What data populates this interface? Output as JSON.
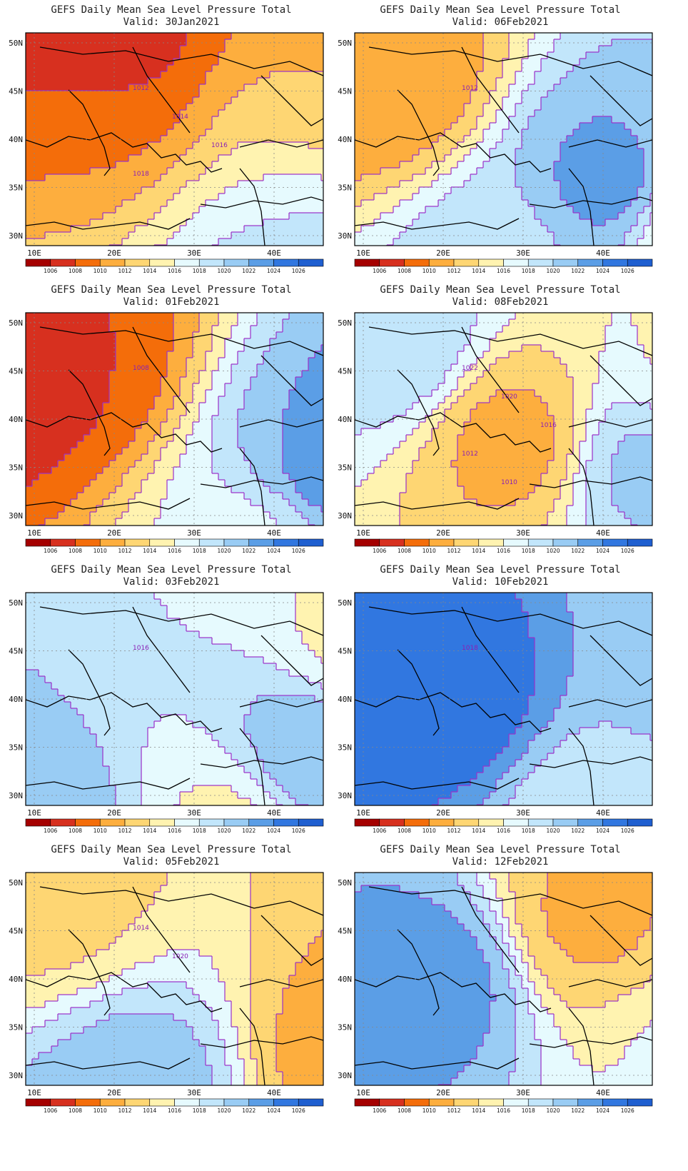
{
  "figure": {
    "title_text": "GEFS Daily Mean Sea Level Pressure Total",
    "valid_prefix": "Valid: "
  },
  "axes": {
    "lat_labels": [
      "50N",
      "45N",
      "40N",
      "35N",
      "30N"
    ],
    "lon_labels": [
      "10E",
      "20E",
      "30E",
      "40E"
    ]
  },
  "colorbar": {
    "labels": [
      "1006",
      "1008",
      "1010",
      "1012",
      "1014",
      "1016",
      "1018",
      "1020",
      "1022",
      "1024",
      "1026"
    ],
    "colors": [
      "#a50000",
      "#d7301f",
      "#f46d0a",
      "#fdae3e",
      "#fed673",
      "#fff3b0",
      "#e6fafe",
      "#c2e6fb",
      "#99ccf4",
      "#5b9ee6",
      "#3177e0",
      "#1f5fd0"
    ]
  },
  "panels": [
    {
      "valid": "30Jan2021",
      "contour_labels": [
        "1012",
        "1014",
        "1016",
        "1018"
      ]
    },
    {
      "valid": "06Feb2021",
      "contour_labels": [
        "1012"
      ]
    },
    {
      "valid": "01Feb2021",
      "contour_labels": [
        "1008"
      ]
    },
    {
      "valid": "08Feb2021",
      "contour_labels": [
        "1022",
        "1020",
        "1016",
        "1012",
        "1010"
      ]
    },
    {
      "valid": "03Feb2021",
      "contour_labels": [
        "1016"
      ]
    },
    {
      "valid": "10Feb2021",
      "contour_labels": [
        "1018"
      ]
    },
    {
      "valid": "05Feb2021",
      "contour_labels": [
        "1014",
        "1020"
      ]
    },
    {
      "valid": "12Feb2021",
      "contour_labels": []
    }
  ]
}
